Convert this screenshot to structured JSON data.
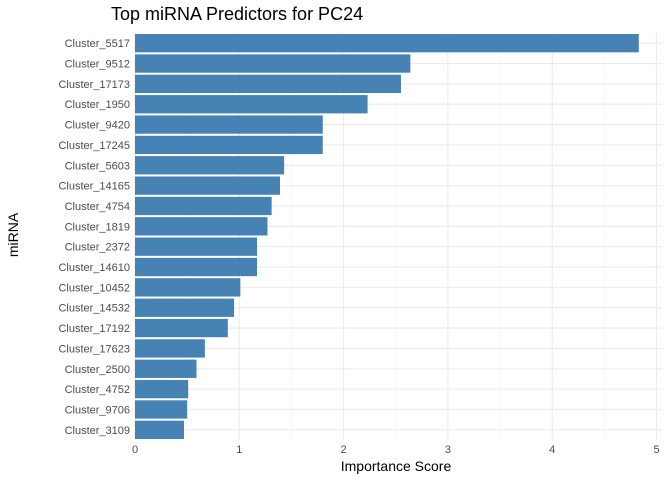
{
  "chart_data": {
    "type": "bar",
    "orientation": "horizontal",
    "title": "Top miRNA Predictors for PC24",
    "xlabel": "Importance Score",
    "ylabel": "miRNA",
    "xlim": [
      0,
      5
    ],
    "x_ticks": [
      "0",
      "1",
      "2",
      "3",
      "4",
      "5"
    ],
    "grid": true,
    "bar_color": "#4682B4",
    "categories": [
      "Cluster_5517",
      "Cluster_9512",
      "Cluster_17173",
      "Cluster_1950",
      "Cluster_9420",
      "Cluster_17245",
      "Cluster_5603",
      "Cluster_14165",
      "Cluster_4754",
      "Cluster_1819",
      "Cluster_2372",
      "Cluster_14610",
      "Cluster_10452",
      "Cluster_14532",
      "Cluster_17192",
      "Cluster_17623",
      "Cluster_2500",
      "Cluster_4752",
      "Cluster_9706",
      "Cluster_3109"
    ],
    "values": [
      4.83,
      2.64,
      2.55,
      2.23,
      1.8,
      1.8,
      1.43,
      1.39,
      1.31,
      1.27,
      1.17,
      1.17,
      1.01,
      0.95,
      0.89,
      0.67,
      0.59,
      0.51,
      0.5,
      0.47
    ]
  }
}
